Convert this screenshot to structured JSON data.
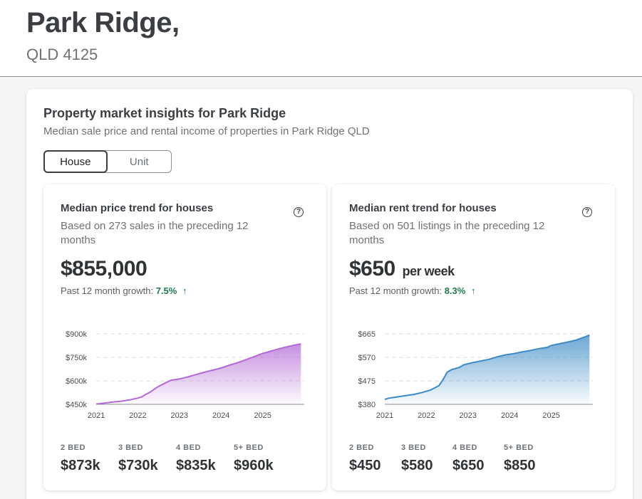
{
  "header": {
    "title": "Park Ridge,",
    "subtitle": "QLD 4125"
  },
  "insights": {
    "title": "Property market insights for Park Ridge",
    "subtitle": "Median sale price and rental income of properties in Park Ridge QLD",
    "tabs": [
      {
        "label": "House",
        "active": true
      },
      {
        "label": "Unit",
        "active": false
      }
    ]
  },
  "price_card": {
    "title": "Median price trend for houses",
    "subtitle": "Based on 273 sales in the preceding 12 months",
    "value": "$855,000",
    "unit": "",
    "growth_label": "Past 12 month growth:",
    "growth_value": "7.5%",
    "growth_arrow": "↑",
    "help_icon": "question-circle-icon",
    "beds": [
      {
        "label": "2 BED",
        "value": "$873k"
      },
      {
        "label": "3 BED",
        "value": "$730k"
      },
      {
        "label": "4 BED",
        "value": "$835k"
      },
      {
        "label": "5+ BED",
        "value": "$960k"
      }
    ]
  },
  "rent_card": {
    "title": "Median rent trend for houses",
    "subtitle": "Based on 501 listings in the preceding 12 months",
    "value": "$650",
    "unit": "per week",
    "growth_label": "Past 12 month growth:",
    "growth_value": "8.3%",
    "growth_arrow": "↑",
    "help_icon": "question-circle-icon",
    "beds": [
      {
        "label": "2 BED",
        "value": "$450"
      },
      {
        "label": "3 BED",
        "value": "$580"
      },
      {
        "label": "4 BED",
        "value": "$650"
      },
      {
        "label": "5+ BED",
        "value": "$850"
      }
    ]
  },
  "chart_data": [
    {
      "type": "area",
      "title": "",
      "xlabel": "",
      "ylabel": "",
      "color": "#b36ad6",
      "xticks": [
        "2021",
        "2022",
        "2023",
        "2024",
        "2025"
      ],
      "yticks": [
        "$450k",
        "$600k",
        "$750k",
        "$900k"
      ],
      "ylim": [
        450,
        900
      ],
      "xlim": [
        2021.0,
        2026.0
      ],
      "grid": true,
      "series": [
        {
          "x": [
            2021.0,
            2021.2,
            2021.4,
            2021.6,
            2021.8,
            2022.0,
            2022.1,
            2022.2,
            2022.3,
            2022.4,
            2022.5,
            2022.6,
            2022.7,
            2022.8,
            2023.0,
            2023.2,
            2023.4,
            2023.6,
            2023.8,
            2024.0,
            2024.2,
            2024.4,
            2024.6,
            2024.8,
            2025.0,
            2025.2,
            2025.4,
            2025.6,
            2025.8,
            2025.92
          ],
          "y": [
            452,
            458,
            465,
            470,
            478,
            490,
            498,
            515,
            528,
            548,
            565,
            578,
            592,
            604,
            612,
            625,
            640,
            655,
            668,
            682,
            700,
            716,
            735,
            755,
            775,
            790,
            805,
            818,
            830,
            836
          ]
        }
      ]
    },
    {
      "type": "area",
      "title": "",
      "xlabel": "",
      "ylabel": "",
      "color": "#3a8ac6",
      "xticks": [
        "2021",
        "2022",
        "2023",
        "2024",
        "2025"
      ],
      "yticks": [
        "$380",
        "$475",
        "$570",
        "$665"
      ],
      "ylim": [
        380,
        665
      ],
      "xlim": [
        2021.0,
        2026.0
      ],
      "grid": true,
      "series": [
        {
          "x": [
            2021.0,
            2021.1,
            2021.3,
            2021.5,
            2021.7,
            2021.9,
            2022.1,
            2022.3,
            2022.4,
            2022.5,
            2022.6,
            2022.8,
            2022.9,
            2023.1,
            2023.3,
            2023.5,
            2023.7,
            2023.9,
            2024.1,
            2024.3,
            2024.5,
            2024.7,
            2024.9,
            2025.0,
            2025.2,
            2025.4,
            2025.6,
            2025.8,
            2025.92
          ],
          "y": [
            400,
            405,
            410,
            415,
            420,
            428,
            438,
            455,
            480,
            510,
            520,
            530,
            540,
            548,
            555,
            562,
            572,
            580,
            585,
            592,
            598,
            605,
            610,
            618,
            625,
            632,
            640,
            652,
            660
          ]
        }
      ]
    }
  ]
}
